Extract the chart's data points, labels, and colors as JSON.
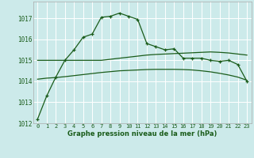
{
  "bg_color": "#cceaea",
  "grid_color": "#ffffff",
  "line_color_dark": "#1a5c1a",
  "line_color_med": "#2e7d2e",
  "xlabel": "Graphe pression niveau de la mer (hPa)",
  "ylim": [
    1012,
    1017.8
  ],
  "xlim": [
    -0.5,
    23.5
  ],
  "yticks": [
    1012,
    1013,
    1014,
    1015,
    1016,
    1017
  ],
  "xticks": [
    0,
    1,
    2,
    3,
    4,
    5,
    6,
    7,
    8,
    9,
    10,
    11,
    12,
    13,
    14,
    15,
    16,
    17,
    18,
    19,
    20,
    21,
    22,
    23
  ],
  "series_main": [
    1012.2,
    1013.3,
    1014.2,
    1015.0,
    1015.5,
    1016.1,
    1016.25,
    1017.05,
    1017.1,
    1017.25,
    1017.1,
    1016.95,
    1015.8,
    1015.65,
    1015.5,
    1015.55,
    1015.1,
    1015.1,
    1015.1,
    1015.0,
    1014.95,
    1015.0,
    1014.8,
    1014.0
  ],
  "series_avg_high": [
    1015.0,
    1015.0,
    1015.0,
    1015.0,
    1015.0,
    1015.0,
    1015.0,
    1015.0,
    1015.05,
    1015.1,
    1015.15,
    1015.2,
    1015.25,
    1015.28,
    1015.3,
    1015.32,
    1015.34,
    1015.36,
    1015.38,
    1015.4,
    1015.38,
    1015.35,
    1015.3,
    1015.25
  ],
  "series_avg_low": [
    1014.1,
    1014.15,
    1014.18,
    1014.22,
    1014.27,
    1014.32,
    1014.37,
    1014.42,
    1014.46,
    1014.5,
    1014.52,
    1014.54,
    1014.56,
    1014.57,
    1014.57,
    1014.57,
    1014.56,
    1014.54,
    1014.5,
    1014.45,
    1014.38,
    1014.3,
    1014.2,
    1014.05
  ]
}
